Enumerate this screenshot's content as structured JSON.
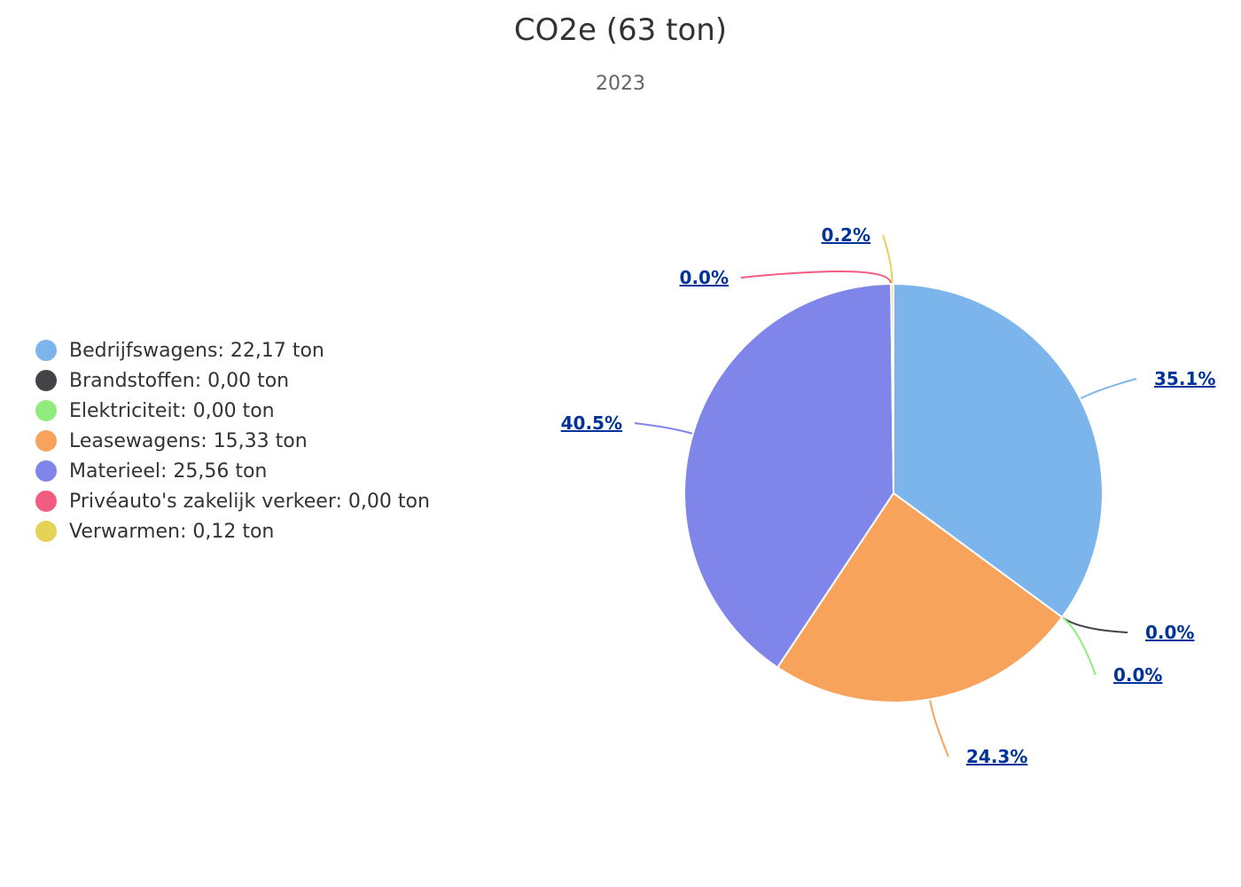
{
  "chart_data": {
    "type": "pie",
    "title": "CO2e (63 ton)",
    "subtitle": "2023",
    "legend_position": "left",
    "unit": "ton",
    "slices": [
      {
        "name": "Bedrijfswagens",
        "legend_label": "Bedrijfswagens: 22,17 ton",
        "value": 22.17,
        "percent_label": "35.1%",
        "color": "#7cb5ec"
      },
      {
        "name": "Brandstoffen",
        "legend_label": "Brandstoffen: 0,00 ton",
        "value": 0.0,
        "percent_label": "0.0%",
        "color": "#434348"
      },
      {
        "name": "Elektriciteit",
        "legend_label": "Elektriciteit: 0,00 ton",
        "value": 0.0,
        "percent_label": "0.0%",
        "color": "#90ed7d"
      },
      {
        "name": "Leasewagens",
        "legend_label": "Leasewagens: 15,33 ton",
        "value": 15.33,
        "percent_label": "24.3%",
        "color": "#f7a35c"
      },
      {
        "name": "Materieel",
        "legend_label": "Materieel: 25,56 ton",
        "value": 25.56,
        "percent_label": "40.5%",
        "color": "#8085e9"
      },
      {
        "name": "Privéauto's zakelijk verkeer",
        "legend_label": "Privéauto's zakelijk verkeer: 0,00 ton",
        "value": 0.0,
        "percent_label": "0.0%",
        "color": "#f15c80"
      },
      {
        "name": "Verwarmen",
        "legend_label": "Verwarmen: 0,12 ton",
        "value": 0.12,
        "percent_label": "0.2%",
        "color": "#e4d354"
      }
    ]
  }
}
